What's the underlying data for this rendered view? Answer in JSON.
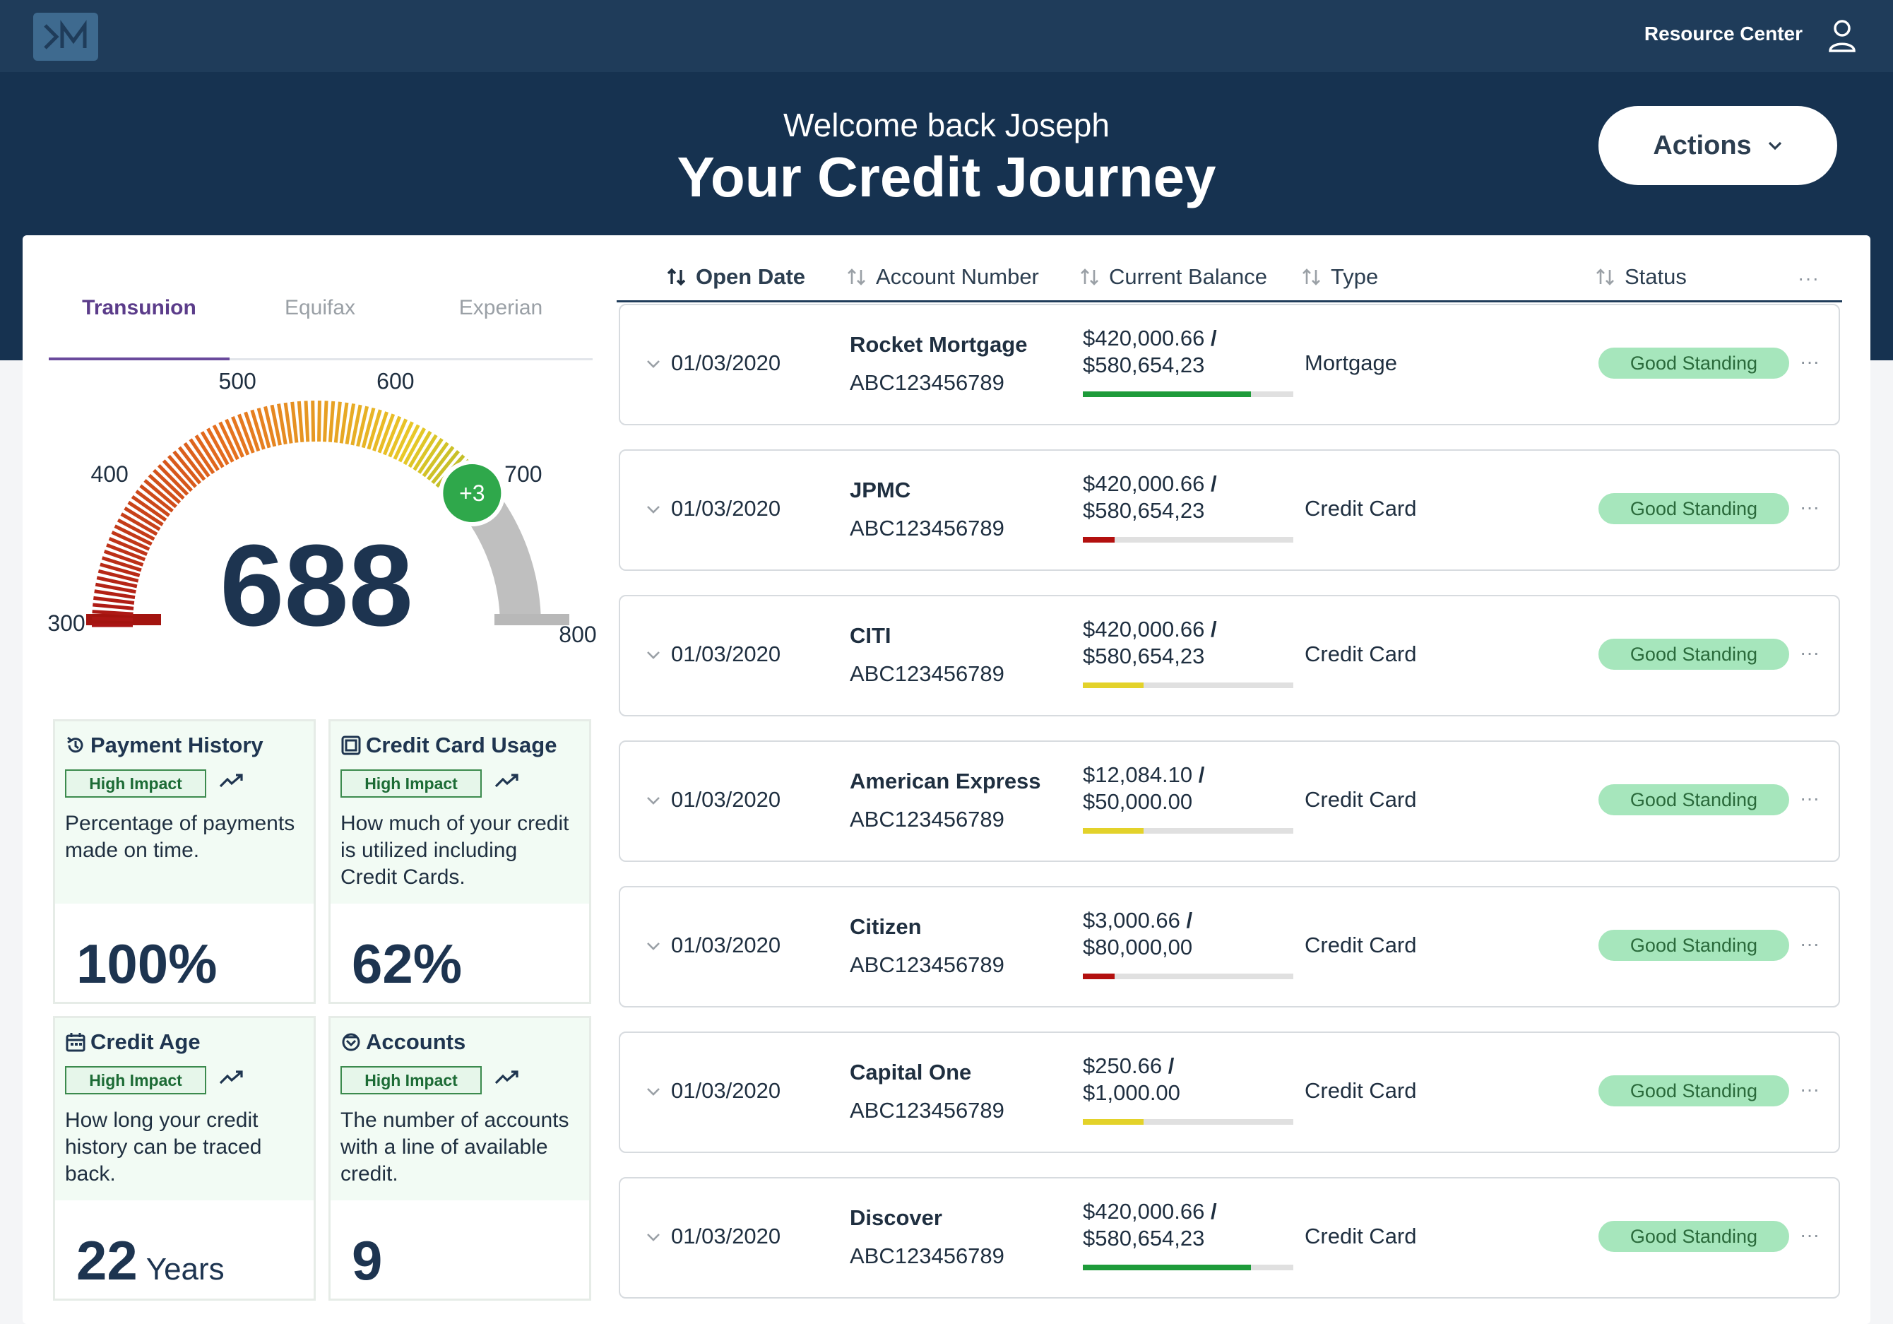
{
  "header": {
    "resource_center": "Resource Center",
    "user_icon": "user-icon",
    "logo_icon": "brand-logo-icon"
  },
  "hero": {
    "welcome": "Welcome back Joseph",
    "title": "Your Credit Journey",
    "actions_label": "Actions"
  },
  "bureau_tabs": [
    "Transunion",
    "Equifax",
    "Experian"
  ],
  "active_bureau": "Transunion",
  "score": {
    "value": "688",
    "change": "+3",
    "min": 300,
    "max": 800,
    "ticks": [
      "300",
      "400",
      "500",
      "600",
      "700",
      "800"
    ]
  },
  "factors": [
    {
      "title": "Payment History",
      "icon": "history-icon",
      "impact": "High Impact",
      "description": "Percentage of payments made on time.",
      "value": "100%",
      "unit": ""
    },
    {
      "title": "Credit Card Usage",
      "icon": "credit-card-icon",
      "impact": "High Impact",
      "description": "How much of your credit is utilized including Credit Cards.",
      "value": "62%",
      "unit": ""
    },
    {
      "title": "Credit Age",
      "icon": "calendar-icon",
      "impact": "High Impact",
      "description": "How long your credit history can be traced back.",
      "value": "22",
      "unit": "Years"
    },
    {
      "title": "Accounts",
      "icon": "accounts-icon",
      "impact": "High Impact",
      "description": "The number of accounts with a line of available credit.",
      "value": "9",
      "unit": ""
    }
  ],
  "table": {
    "columns": [
      "Open Date",
      "Account Number",
      "Current Balance",
      "Type",
      "Status"
    ],
    "rows": [
      {
        "date": "01/03/2020",
        "name": "Rocket Mortgage",
        "account": "ABC123456789",
        "balance": "$420,000.66",
        "limit": "$580,654,23",
        "usage": 0.8,
        "bar_color": "#1e9b3a",
        "type": "Mortgage",
        "status": "Good Standing"
      },
      {
        "date": "01/03/2020",
        "name": "JPMC",
        "account": "ABC123456789",
        "balance": "$420,000.66",
        "limit": "$580,654,23",
        "usage": 0.15,
        "bar_color": "#b3100f",
        "type": "Credit Card",
        "status": "Good Standing"
      },
      {
        "date": "01/03/2020",
        "name": "CITI",
        "account": "ABC123456789",
        "balance": "$420,000.66",
        "limit": "$580,654,23",
        "usage": 0.29,
        "bar_color": "#e3d22a",
        "type": "Credit Card",
        "status": "Good Standing"
      },
      {
        "date": "01/03/2020",
        "name": "American Express",
        "account": "ABC123456789",
        "balance": "$12,084.10",
        "limit": "$50,000.00",
        "usage": 0.29,
        "bar_color": "#e3d22a",
        "type": "Credit Card",
        "status": "Good Standing"
      },
      {
        "date": "01/03/2020",
        "name": "Citizen",
        "account": "ABC123456789",
        "balance": "$3,000.66",
        "limit": "$80,000,00",
        "usage": 0.15,
        "bar_color": "#b3100f",
        "type": "Credit Card",
        "status": "Good Standing"
      },
      {
        "date": "01/03/2020",
        "name": "Capital One",
        "account": "ABC123456789",
        "balance": "$250.66",
        "limit": "$1,000.00",
        "usage": 0.29,
        "bar_color": "#e3d22a",
        "type": "Credit Card",
        "status": "Good Standing"
      },
      {
        "date": "01/03/2020",
        "name": "Discover",
        "account": "ABC123456789",
        "balance": "$420,000.66",
        "limit": "$580,654,23",
        "usage": 0.8,
        "bar_color": "#1e9b3a",
        "type": "Credit Card",
        "status": "Good Standing"
      }
    ]
  },
  "colors": {
    "header_bg": "#1f3c5a",
    "hero_bg": "#163250",
    "tab_active": "#5b3c8a",
    "status_bg": "#a6e6bc",
    "impact_border": "#3b8a4d"
  }
}
